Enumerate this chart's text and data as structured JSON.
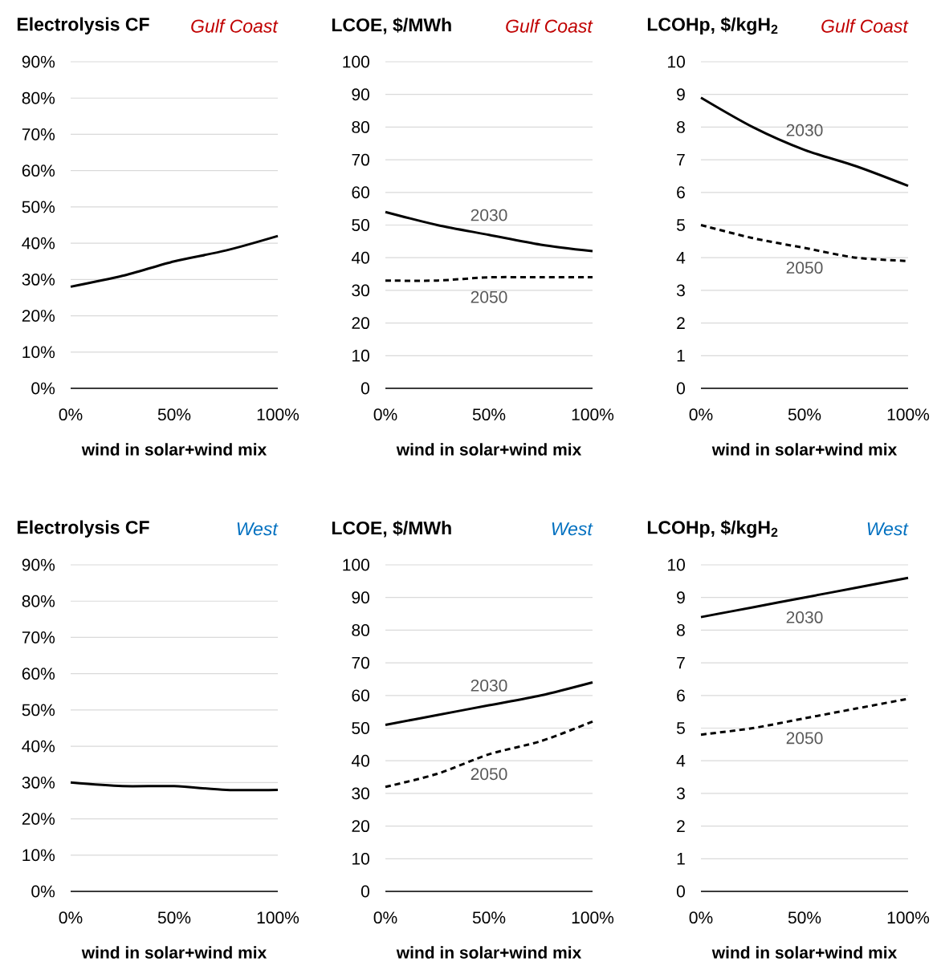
{
  "chart_data": [
    {
      "type": "line",
      "title": "Electrolysis CF",
      "subtitle": "*Gulf Coast*",
      "xlabel": "wind in solar+wind mix",
      "x": [
        0,
        25,
        50,
        75,
        100
      ],
      "xlim": [
        0,
        100
      ],
      "xticks": [
        {
          "value": 0,
          "label": "0%"
        },
        {
          "value": 50,
          "label": "50%"
        },
        {
          "value": 100,
          "label": "100%"
        }
      ],
      "ylim": [
        0,
        90
      ],
      "yticks": [
        {
          "value": 0,
          "label": "0%"
        },
        {
          "value": 10,
          "label": "10%"
        },
        {
          "value": 20,
          "label": "20%"
        },
        {
          "value": 30,
          "label": "30%"
        },
        {
          "value": 40,
          "label": "40%"
        },
        {
          "value": 50,
          "label": "50%"
        },
        {
          "value": 60,
          "label": "60%"
        },
        {
          "value": 70,
          "label": "70%"
        },
        {
          "value": 80,
          "label": "80%"
        },
        {
          "value": 90,
          "label": "90%"
        }
      ],
      "grid": "y",
      "series": [
        {
          "color": "#000000",
          "line_style": "solid",
          "values": [
            28,
            31,
            35,
            38,
            42
          ]
        }
      ]
    },
    {
      "type": "line",
      "title": "LCOE, $/MWh",
      "subtitle": "*Gulf Coast*",
      "xlabel": "wind in solar+wind mix",
      "x": [
        0,
        25,
        50,
        75,
        100
      ],
      "xlim": [
        0,
        100
      ],
      "xticks": [
        {
          "value": 0,
          "label": "0%"
        },
        {
          "value": 50,
          "label": "50%"
        },
        {
          "value": 100,
          "label": "100%"
        }
      ],
      "ylim": [
        0,
        100
      ],
      "yticks": [
        0,
        10,
        20,
        30,
        40,
        50,
        60,
        70,
        80,
        90,
        100
      ],
      "grid": "y",
      "series": [
        {
          "color": "#000000",
          "line_style": "solid",
          "values": [
            54,
            50,
            47,
            44,
            42
          ]
        },
        {
          "color": "#000000",
          "line_style": "dashed",
          "values": [
            33,
            33,
            34,
            34,
            34
          ]
        }
      ],
      "annotations": [
        "2030",
        "2050"
      ]
    },
    {
      "type": "line",
      "title": "LCOHp, $/kgH$_{2}$",
      "subtitle": "*Gulf Coast*",
      "xlabel": "wind in solar+wind mix",
      "x": [
        0,
        25,
        50,
        75,
        100
      ],
      "xlim": [
        0,
        100
      ],
      "xticks": [
        {
          "value": 0,
          "label": "0%"
        },
        {
          "value": 50,
          "label": "50%"
        },
        {
          "value": 100,
          "label": "100%"
        }
      ],
      "ylim": [
        0,
        10
      ],
      "yticks": [
        0,
        1,
        2,
        3,
        4,
        5,
        6,
        7,
        8,
        9,
        10
      ],
      "grid": "y",
      "series": [
        {
          "color": "#000000",
          "line_style": "solid",
          "values": [
            8.9,
            8.0,
            7.3,
            6.8,
            6.2
          ]
        },
        {
          "color": "#000000",
          "line_style": "dashed",
          "values": [
            5.0,
            4.6,
            4.3,
            4.0,
            3.9
          ]
        }
      ],
      "annotations": [
        "2030",
        "2050"
      ]
    },
    {
      "type": "line",
      "title": "Electrolysis CF",
      "subtitle": "*West*",
      "xlabel": "wind in solar+wind mix",
      "x": [
        0,
        25,
        50,
        75,
        100
      ],
      "xlim": [
        0,
        100
      ],
      "xticks": [
        {
          "value": 0,
          "label": "0%"
        },
        {
          "value": 50,
          "label": "50%"
        },
        {
          "value": 100,
          "label": "100%"
        }
      ],
      "ylim": [
        0,
        90
      ],
      "yticks": [
        {
          "value": 0,
          "label": "0%"
        },
        {
          "value": 10,
          "label": "10%"
        },
        {
          "value": 20,
          "label": "20%"
        },
        {
          "value": 30,
          "label": "30%"
        },
        {
          "value": 40,
          "label": "40%"
        },
        {
          "value": 50,
          "label": "50%"
        },
        {
          "value": 60,
          "label": "60%"
        },
        {
          "value": 70,
          "label": "70%"
        },
        {
          "value": 80,
          "label": "80%"
        },
        {
          "value": 90,
          "label": "90%"
        }
      ],
      "grid": "y",
      "series": [
        {
          "color": "#000000",
          "line_style": "solid",
          "values": [
            30,
            29,
            29,
            28,
            28
          ]
        }
      ]
    },
    {
      "type": "line",
      "title": "LCOE, $/MWh",
      "subtitle": "*West*",
      "xlabel": "wind in solar+wind mix",
      "x": [
        0,
        25,
        50,
        75,
        100
      ],
      "xlim": [
        0,
        100
      ],
      "xticks": [
        {
          "value": 0,
          "label": "0%"
        },
        {
          "value": 50,
          "label": "50%"
        },
        {
          "value": 100,
          "label": "100%"
        }
      ],
      "ylim": [
        0,
        100
      ],
      "yticks": [
        0,
        10,
        20,
        30,
        40,
        50,
        60,
        70,
        80,
        90,
        100
      ],
      "grid": "y",
      "series": [
        {
          "color": "#000000",
          "line_style": "solid",
          "values": [
            51,
            54,
            57,
            60,
            64
          ]
        },
        {
          "color": "#000000",
          "line_style": "dashed",
          "values": [
            32,
            36,
            42,
            46,
            52
          ]
        }
      ],
      "annotations": [
        "2030",
        "2050"
      ]
    },
    {
      "type": "line",
      "title": "LCOHp, $/kgH$_{2}$",
      "subtitle": "*West*",
      "xlabel": "wind in solar+wind mix",
      "x": [
        0,
        25,
        50,
        75,
        100
      ],
      "xlim": [
        0,
        100
      ],
      "xticks": [
        {
          "value": 0,
          "label": "0%"
        },
        {
          "value": 50,
          "label": "50%"
        },
        {
          "value": 100,
          "label": "100%"
        }
      ],
      "ylim": [
        0,
        10
      ],
      "yticks": [
        0,
        1,
        2,
        3,
        4,
        5,
        6,
        7,
        8,
        9,
        10
      ],
      "grid": "y",
      "series": [
        {
          "color": "#000000",
          "line_style": "solid",
          "values": [
            8.4,
            8.7,
            9.0,
            9.3,
            9.6
          ]
        },
        {
          "color": "#000000",
          "line_style": "dashed",
          "values": [
            4.8,
            5.0,
            5.3,
            5.6,
            5.9
          ]
        }
      ],
      "annotations": [
        "2030",
        "2050"
      ]
    }
  ]
}
